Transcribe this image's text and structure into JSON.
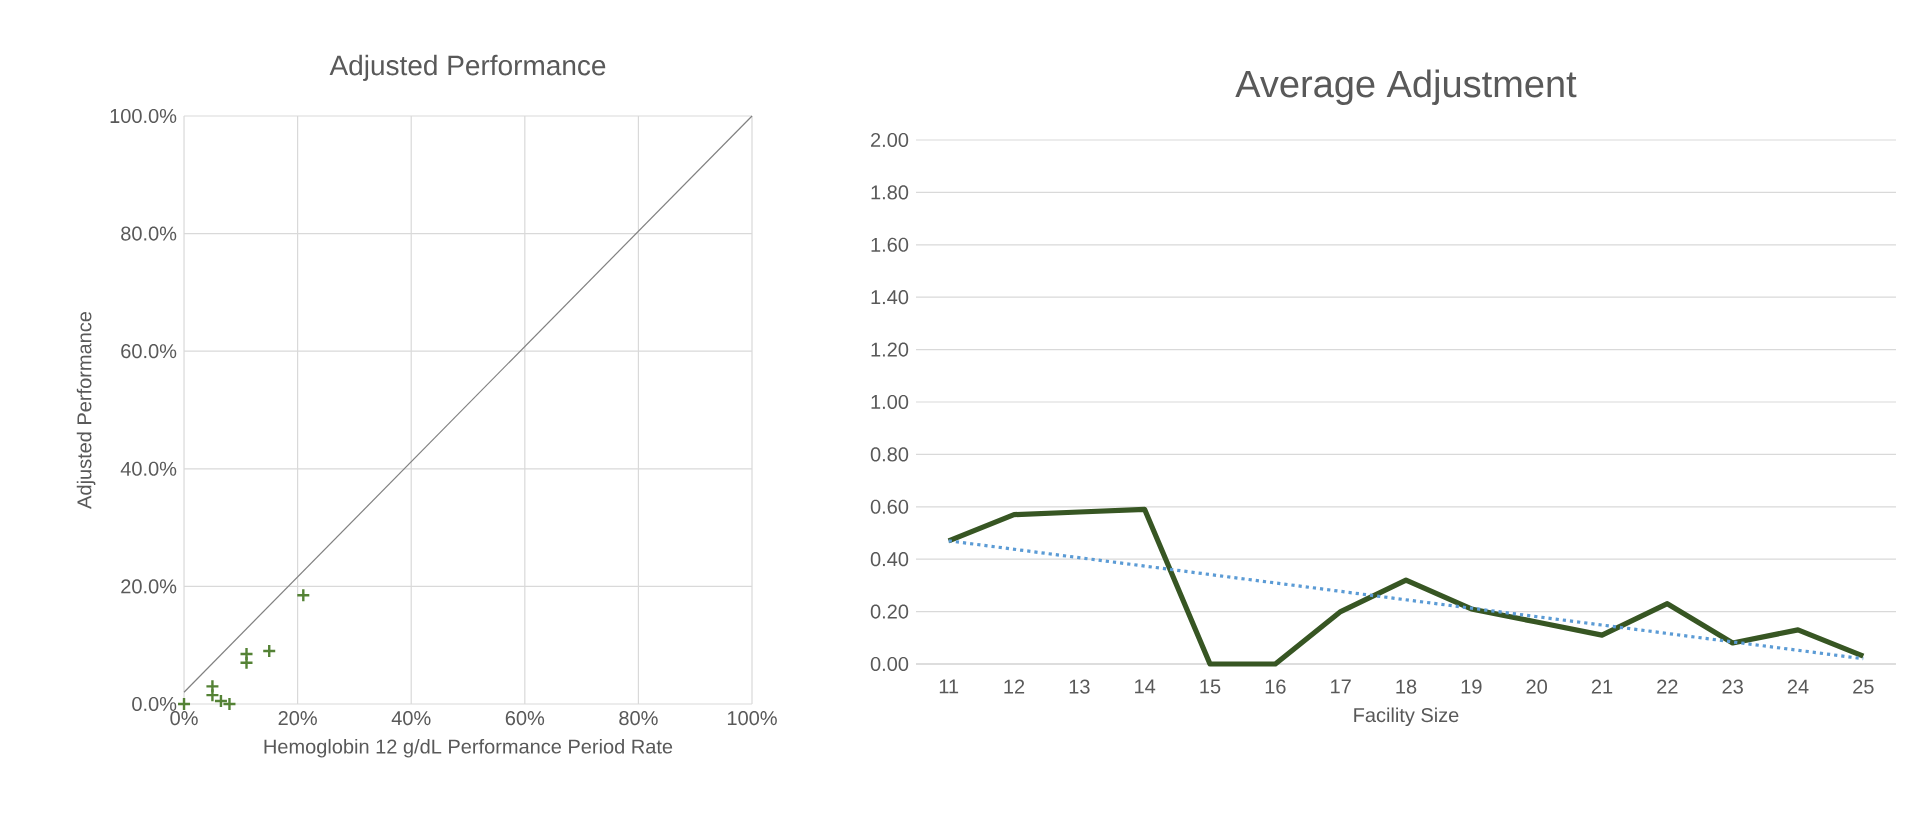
{
  "chart_data": [
    {
      "type": "scatter",
      "title": "Adjusted Performance",
      "xlabel": "Hemoglobin 12 g/dL Performance Period Rate",
      "ylabel": "Adjusted Performance",
      "xlim": [
        0,
        100
      ],
      "ylim": [
        0,
        100
      ],
      "xticks": [
        {
          "value": 0,
          "label": "0%"
        },
        {
          "value": 20,
          "label": "20%"
        },
        {
          "value": 40,
          "label": "40%"
        },
        {
          "value": 60,
          "label": "60%"
        },
        {
          "value": 80,
          "label": "80%"
        },
        {
          "value": 100,
          "label": "100%"
        }
      ],
      "yticks": [
        {
          "value": 0,
          "label": "0.0%"
        },
        {
          "value": 20,
          "label": "20.0%"
        },
        {
          "value": 40,
          "label": "40.0%"
        },
        {
          "value": 60,
          "label": "60.0%"
        },
        {
          "value": 80,
          "label": "80.0%"
        },
        {
          "value": 100,
          "label": "100.0%"
        }
      ],
      "grid": true,
      "series": [
        {
          "color": "#548235",
          "marker": "cross",
          "x": [
            0,
            5,
            5,
            6.5,
            8,
            11,
            11,
            15,
            21
          ],
          "values": [
            0,
            3,
            1.5,
            0.5,
            0,
            7,
            8.5,
            9,
            18.5
          ]
        },
        {
          "type": "line",
          "color": "#808080",
          "marker": "none",
          "x": [
            0,
            100
          ],
          "values": [
            2,
            100
          ]
        }
      ]
    },
    {
      "type": "line",
      "title": "Average Adjustment",
      "xlabel": "Facility Size",
      "xlim": [
        10.5,
        25.5
      ],
      "xticks": [
        11,
        12,
        13,
        14,
        15,
        16,
        17,
        18,
        19,
        20,
        21,
        22,
        23,
        24,
        25
      ],
      "ylim": [
        0,
        2
      ],
      "yticks": [
        {
          "value": 0,
          "label": "0.00"
        },
        {
          "value": 0.2,
          "label": "0.20"
        },
        {
          "value": 0.4,
          "label": "0.40"
        },
        {
          "value": 0.6,
          "label": "0.60"
        },
        {
          "value": 0.8,
          "label": "0.80"
        },
        {
          "value": 1.0,
          "label": "1.00"
        },
        {
          "value": 1.2,
          "label": "1.20"
        },
        {
          "value": 1.4,
          "label": "1.40"
        },
        {
          "value": 1.6,
          "label": "1.60"
        },
        {
          "value": 1.8,
          "label": "1.80"
        },
        {
          "value": 2.0,
          "label": "2.00"
        }
      ],
      "grid": "y",
      "series": [
        {
          "color": "#375623",
          "x": [
            11,
            12,
            13,
            14,
            15,
            16,
            17,
            18,
            19,
            20,
            21,
            22,
            23,
            24,
            25
          ],
          "values": [
            0.47,
            0.57,
            0.58,
            0.59,
            0.0,
            0.0,
            0.2,
            0.32,
            0.21,
            0.16,
            0.11,
            0.23,
            0.08,
            0.13,
            0.03
          ]
        },
        {
          "color": "#5b9bd5",
          "line_style": "dotted",
          "x": [
            11,
            25
          ],
          "values": [
            0.47,
            0.02
          ]
        }
      ]
    }
  ]
}
